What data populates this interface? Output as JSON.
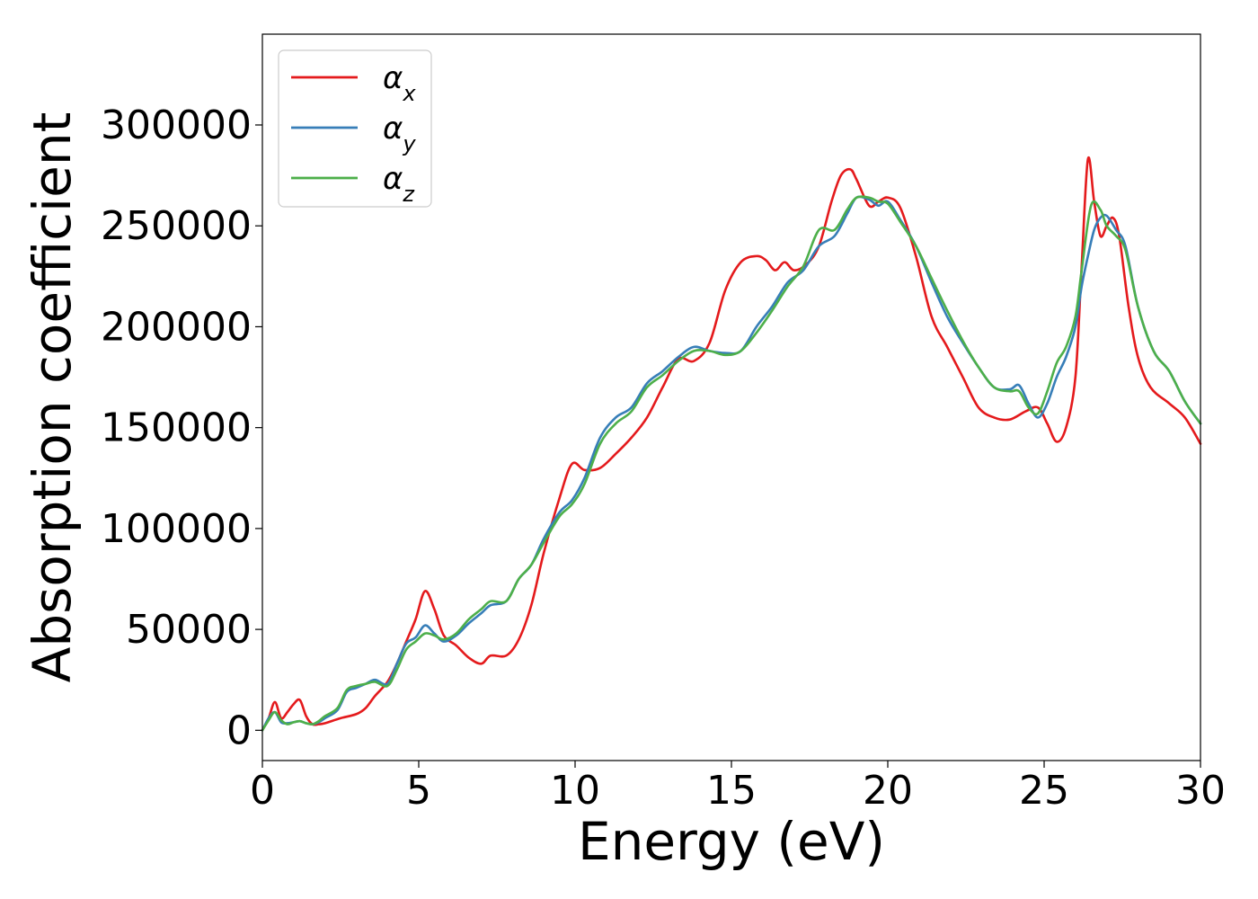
{
  "chart_data": {
    "type": "line",
    "title": "",
    "xlabel": "Energy (eV)",
    "ylabel": "Absorption coefficient",
    "xlim": [
      0,
      30
    ],
    "ylim": [
      -15000,
      345000
    ],
    "xticks": [
      0,
      5,
      10,
      15,
      20,
      25,
      30
    ],
    "xtick_labels": [
      "0",
      "5",
      "10",
      "15",
      "20",
      "25",
      "30"
    ],
    "yticks": [
      0,
      50000,
      100000,
      150000,
      200000,
      250000,
      300000
    ],
    "ytick_labels": [
      "0",
      "50000",
      "100000",
      "150000",
      "200000",
      "250000",
      "300000"
    ],
    "grid": false,
    "legend_position": "top-left",
    "series": [
      {
        "name": "α",
        "subscript": "x",
        "color": "#e41a1c",
        "x": [
          0,
          0.2,
          0.4,
          0.6,
          0.8,
          1.0,
          1.2,
          1.4,
          1.6,
          1.8,
          2.0,
          2.5,
          3.0,
          3.3,
          3.6,
          4.0,
          4.3,
          4.6,
          4.9,
          5.2,
          5.5,
          5.8,
          6.2,
          6.6,
          7.0,
          7.3,
          7.8,
          8.2,
          8.6,
          9.0,
          9.5,
          9.9,
          10.3,
          10.8,
          11.3,
          11.8,
          12.3,
          12.8,
          13.3,
          13.8,
          14.3,
          14.8,
          15.3,
          15.8,
          16.1,
          16.4,
          16.7,
          17.0,
          17.4,
          17.8,
          18.2,
          18.5,
          18.8,
          19.0,
          19.4,
          19.7,
          20.0,
          20.4,
          20.9,
          21.4,
          21.9,
          22.4,
          22.9,
          23.4,
          23.9,
          24.4,
          24.8,
          25.1,
          25.4,
          25.7,
          26.0,
          26.2,
          26.4,
          26.6,
          26.8,
          27.0,
          27.2,
          27.4,
          27.7,
          28.0,
          28.4,
          29.0,
          29.5,
          30.0
        ],
        "y": [
          0,
          6000,
          14000,
          6000,
          9000,
          13000,
          15000,
          7000,
          3000,
          3000,
          3500,
          6000,
          8000,
          11000,
          17000,
          24000,
          33000,
          44000,
          55000,
          69000,
          60000,
          47000,
          42000,
          36000,
          33000,
          37000,
          37000,
          45000,
          62000,
          88000,
          115000,
          132000,
          129000,
          130000,
          137000,
          145000,
          155000,
          170000,
          184000,
          183000,
          192000,
          218000,
          232000,
          235000,
          233000,
          228000,
          232000,
          228000,
          231000,
          240000,
          262000,
          275000,
          278000,
          273000,
          260000,
          262000,
          264000,
          259000,
          235000,
          205000,
          190000,
          175000,
          160000,
          155000,
          154000,
          158000,
          160000,
          152000,
          143000,
          150000,
          175000,
          230000,
          283000,
          262000,
          245000,
          250000,
          254000,
          245000,
          210000,
          185000,
          170000,
          162000,
          155000,
          142000
        ]
      },
      {
        "name": "α",
        "subscript": "y",
        "color": "#377eb8",
        "x": [
          0,
          0.2,
          0.4,
          0.6,
          0.8,
          1.0,
          1.2,
          1.4,
          1.6,
          1.8,
          2.0,
          2.4,
          2.7,
          3.0,
          3.3,
          3.6,
          4.0,
          4.3,
          4.6,
          4.9,
          5.2,
          5.5,
          5.8,
          6.2,
          6.6,
          7.0,
          7.3,
          7.8,
          8.2,
          8.6,
          9.0,
          9.5,
          9.9,
          10.3,
          10.8,
          11.3,
          11.8,
          12.3,
          12.8,
          13.3,
          13.8,
          14.3,
          14.8,
          15.3,
          15.8,
          16.3,
          16.8,
          17.3,
          17.8,
          18.3,
          18.7,
          19.0,
          19.4,
          19.7,
          20.0,
          20.4,
          20.9,
          21.4,
          21.9,
          22.4,
          22.9,
          23.4,
          23.9,
          24.2,
          24.5,
          24.8,
          25.1,
          25.4,
          25.7,
          26.0,
          26.2,
          26.4,
          26.6,
          26.8,
          27.0,
          27.3,
          27.6,
          28.0,
          28.5,
          29.0,
          29.5,
          30.0
        ],
        "y": [
          0,
          6000,
          9000,
          4000,
          3500,
          4000,
          4500,
          3500,
          3000,
          4000,
          6000,
          10000,
          19000,
          21000,
          23000,
          25000,
          23000,
          33000,
          43000,
          46000,
          52000,
          48000,
          44000,
          47000,
          53000,
          58000,
          62000,
          64000,
          75000,
          82000,
          95000,
          108000,
          114000,
          125000,
          145000,
          155000,
          160000,
          172000,
          178000,
          185000,
          190000,
          188000,
          187000,
          188000,
          200000,
          210000,
          222000,
          228000,
          240000,
          245000,
          256000,
          264000,
          263000,
          260000,
          262000,
          253000,
          240000,
          222000,
          205000,
          192000,
          180000,
          170000,
          169000,
          171000,
          162000,
          155000,
          162000,
          175000,
          185000,
          200000,
          220000,
          235000,
          248000,
          254000,
          255000,
          248000,
          240000,
          210000,
          188000,
          178000,
          163000,
          152000
        ]
      },
      {
        "name": "α",
        "subscript": "z",
        "color": "#4daf4a",
        "x": [
          0,
          0.2,
          0.4,
          0.6,
          0.8,
          1.0,
          1.2,
          1.4,
          1.6,
          1.8,
          2.0,
          2.4,
          2.7,
          3.0,
          3.3,
          3.6,
          4.0,
          4.3,
          4.6,
          4.9,
          5.2,
          5.5,
          5.8,
          6.2,
          6.6,
          7.0,
          7.3,
          7.8,
          8.2,
          8.6,
          9.0,
          9.5,
          9.9,
          10.3,
          10.8,
          11.3,
          11.8,
          12.3,
          12.8,
          13.3,
          13.8,
          14.3,
          14.8,
          15.3,
          15.8,
          16.3,
          16.8,
          17.3,
          17.8,
          18.3,
          18.7,
          19.0,
          19.4,
          19.7,
          20.0,
          20.4,
          20.9,
          21.4,
          21.9,
          22.4,
          22.9,
          23.4,
          23.9,
          24.2,
          24.5,
          24.8,
          25.1,
          25.4,
          25.7,
          26.0,
          26.2,
          26.5,
          26.8,
          27.0,
          27.3,
          27.6,
          28.0,
          28.5,
          29.0,
          29.5,
          30.0
        ],
        "y": [
          0,
          5000,
          9000,
          5000,
          3000,
          4000,
          4500,
          3500,
          3000,
          4500,
          7000,
          11000,
          20000,
          22000,
          23000,
          24000,
          22000,
          30000,
          40000,
          44000,
          48000,
          47000,
          45000,
          48000,
          55000,
          60000,
          64000,
          64000,
          75000,
          82000,
          93000,
          106000,
          112000,
          122000,
          142000,
          152000,
          158000,
          170000,
          176000,
          183000,
          188000,
          188000,
          186000,
          188000,
          197000,
          208000,
          220000,
          230000,
          248000,
          248000,
          258000,
          264000,
          264000,
          262000,
          261000,
          252000,
          240000,
          224000,
          208000,
          193000,
          180000,
          170000,
          168000,
          168000,
          160000,
          157000,
          168000,
          182000,
          190000,
          205000,
          228000,
          260000,
          258000,
          250000,
          245000,
          238000,
          210000,
          188000,
          178000,
          163000,
          152000
        ]
      }
    ]
  }
}
